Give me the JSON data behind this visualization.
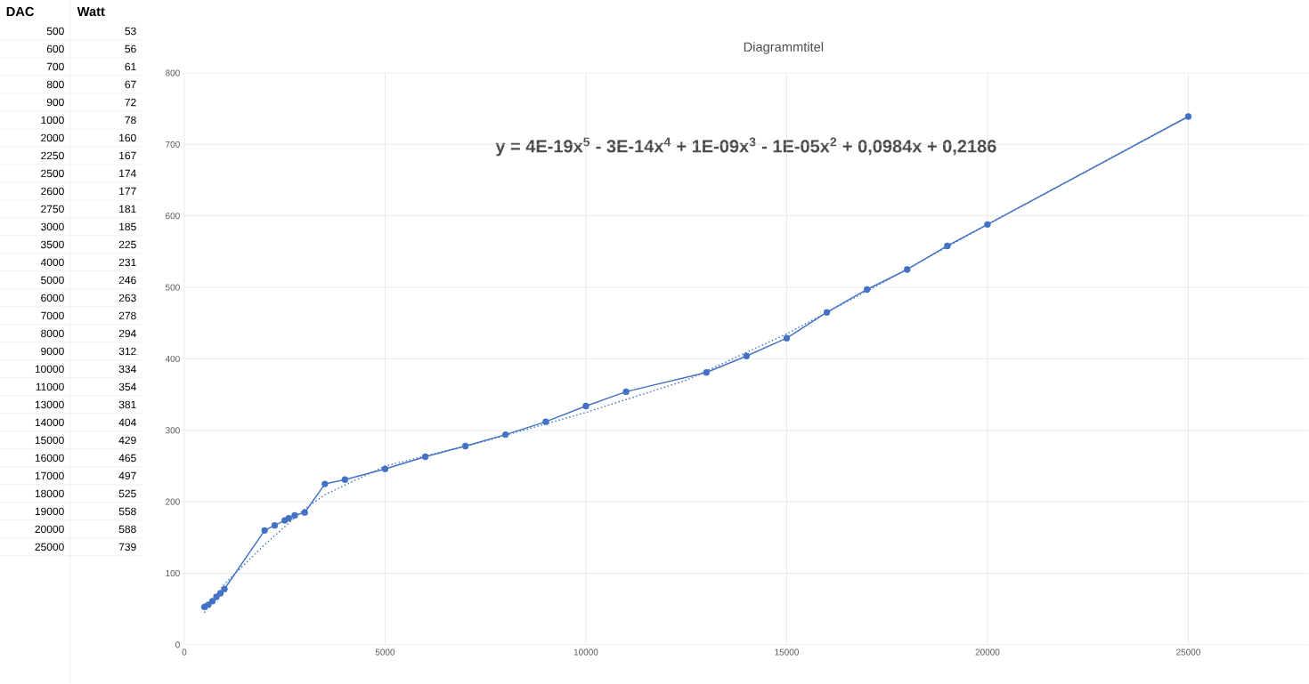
{
  "chart_data": {
    "type": "line",
    "title": "Diagrammtitel",
    "x": [
      500,
      600,
      700,
      800,
      900,
      1000,
      2000,
      2250,
      2500,
      2600,
      2750,
      3000,
      3500,
      4000,
      5000,
      6000,
      7000,
      8000,
      9000,
      10000,
      11000,
      13000,
      14000,
      15000,
      16000,
      17000,
      18000,
      19000,
      20000,
      25000
    ],
    "series": [
      {
        "color": "#4472c4",
        "values": [
          53,
          56,
          61,
          67,
          72,
          78,
          160,
          167,
          174,
          177,
          181,
          185,
          225,
          231,
          246,
          263,
          278,
          294,
          312,
          334,
          354,
          381,
          404,
          429,
          465,
          497,
          525,
          558,
          588,
          739
        ]
      },
      {
        "type": "line",
        "marker": "none",
        "line_style": "dotted",
        "color": "#4472c4",
        "x": [
          500,
          1000,
          2000,
          3000,
          3500,
          5000,
          7500,
          10000,
          12500,
          15000,
          17500,
          20000,
          25000
        ],
        "values": [
          45,
          85,
          140,
          190,
          210,
          250,
          285,
          325,
          370,
          435,
          510,
          588,
          739
        ]
      }
    ],
    "xlim": [
      0,
      28000
    ],
    "ylim": [
      0,
      800
    ],
    "xticks": [
      0,
      5000,
      10000,
      15000,
      20000,
      25000
    ],
    "yticks": [
      0,
      100,
      200,
      300,
      400,
      500,
      600,
      700,
      800
    ],
    "grid": true,
    "marker": "circle",
    "line_style": "solid",
    "annotations": [
      "y = 4E-19x$^{5}$ - 3E-14x$^{4}$ + 1E-09x$^{3}$ - 1E-05x$^{2}$ + 0,0984x + 0,2186",
      "DAC",
      "Watt",
      "500",
      "53",
      "600",
      "56",
      "700",
      "61",
      "800",
      "67",
      "900",
      "72",
      "1000",
      "78",
      "2000",
      "160",
      "2250",
      "167",
      "2500",
      "174",
      "2600",
      "177",
      "2750",
      "181",
      "3000",
      "185",
      "3500",
      "225",
      "4000",
      "231",
      "5000",
      "246",
      "6000",
      "263",
      "7000",
      "278",
      "8000",
      "294",
      "9000",
      "312",
      "10000",
      "334",
      "11000",
      "354",
      "13000",
      "381",
      "14000",
      "404",
      "15000",
      "429",
      "16000",
      "465",
      "17000",
      "497",
      "18000",
      "525",
      "19000",
      "558",
      "20000",
      "588",
      "25000",
      "739"
    ]
  }
}
